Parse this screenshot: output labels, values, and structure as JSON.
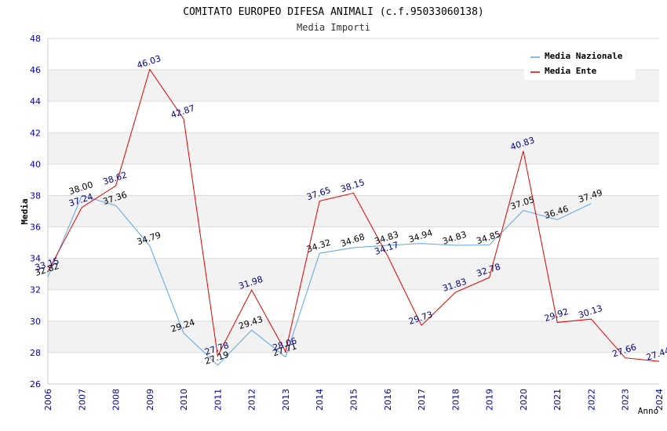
{
  "chart_data": {
    "type": "line",
    "title": "COMITATO EUROPEO DIFESA ANIMALI (c.f.95033060138)",
    "subtitle": "Media Importi",
    "xlabel": "Anno",
    "ylabel": "Media",
    "ylim": [
      26,
      48
    ],
    "yticks": [
      "26",
      "28",
      "30",
      "32",
      "34",
      "36",
      "38",
      "40",
      "42",
      "44",
      "46",
      "48"
    ],
    "categories": [
      "2006",
      "2007",
      "2008",
      "2009",
      "2010",
      "2011",
      "2012",
      "2013",
      "2014",
      "2015",
      "2016",
      "2017",
      "2018",
      "2019",
      "2020",
      "2021",
      "2022",
      "2023",
      "2024"
    ],
    "legend_position": "top-right",
    "grid": true,
    "series": [
      {
        "name": "Media Nazionale",
        "color": "#5aa5e6",
        "values": [
          32.82,
          38.0,
          37.36,
          34.79,
          29.24,
          27.19,
          29.43,
          27.71,
          34.32,
          34.68,
          34.83,
          34.94,
          34.83,
          34.85,
          37.05,
          36.46,
          37.49,
          null,
          null
        ],
        "labels": [
          "32.82",
          "38.00",
          "37.36",
          "34.79",
          "29.24",
          "27.19",
          "29.43",
          "27.71",
          "34.32",
          "34.68",
          "34.83",
          "34.94",
          "34.83",
          "34.85",
          "37.05",
          "36.46",
          "37.49",
          "",
          ""
        ]
      },
      {
        "name": "Media Ente",
        "color": "#dd0000",
        "values": [
          33.15,
          37.24,
          38.62,
          46.03,
          42.87,
          27.78,
          31.98,
          28.06,
          37.65,
          38.15,
          34.17,
          29.73,
          31.83,
          32.78,
          40.83,
          29.92,
          30.13,
          27.66,
          27.44
        ],
        "labels": [
          "33.15",
          "37.24",
          "38.62",
          "46.03",
          "42.87",
          "27.78",
          "31.98",
          "28.06",
          "37.65",
          "38.15",
          "34.17",
          "29.73",
          "31.83",
          "32.78",
          "40.83",
          "29.92",
          "30.13",
          "27.66",
          "27.44"
        ]
      }
    ]
  }
}
